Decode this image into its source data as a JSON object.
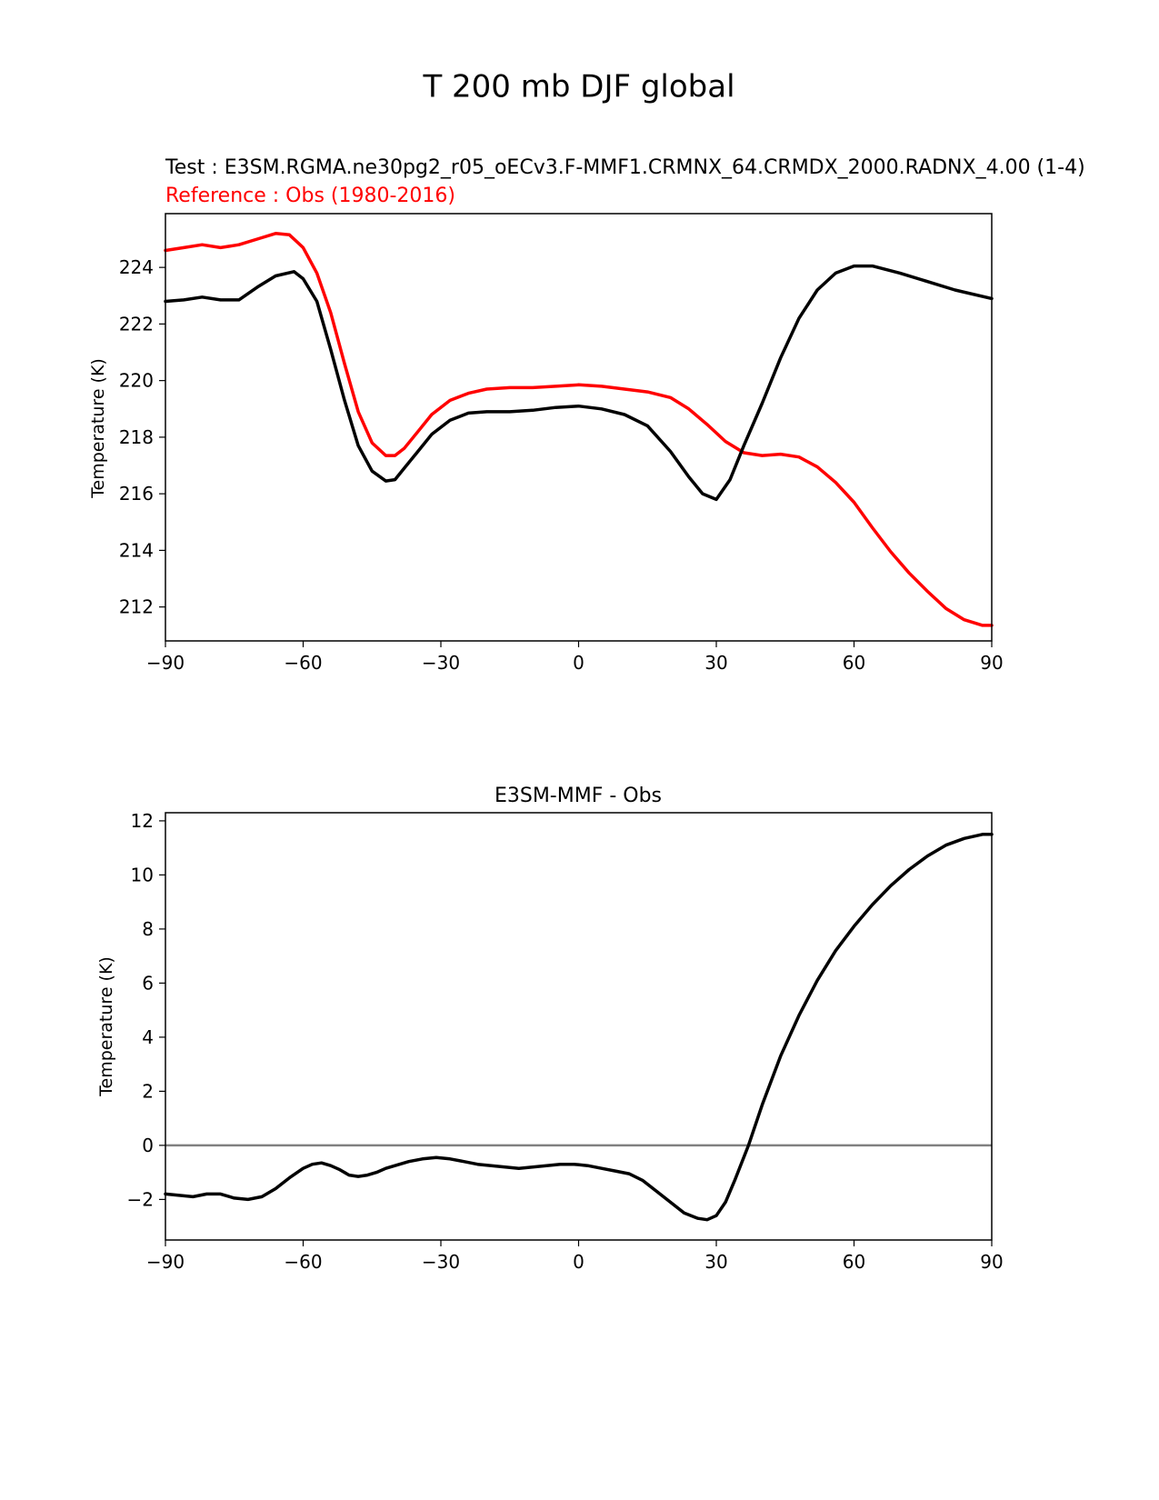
{
  "figure": {
    "title": "T 200 mb DJF global",
    "colors": {
      "test": "#000000",
      "reference": "#ff0000",
      "zero_line": "#808080",
      "axes": "#000000"
    }
  },
  "chart_data": [
    {
      "type": "line",
      "subtitle_test": "Test : E3SM.RGMA.ne30pg2_r05_oECv3.F-MMF1.CRMNX_64.CRMDX_2000.RADNX_4.00 (1-4)",
      "subtitle_reference": "Reference : Obs (1980-2016)",
      "xlabel": "",
      "ylabel": "Temperature (K)",
      "xlim": [
        -90,
        90
      ],
      "ylim": [
        210.8,
        225.9
      ],
      "xticks": [
        -90,
        -60,
        -30,
        0,
        30,
        60,
        90
      ],
      "xtick_labels": [
        "−90",
        "−60",
        "−30",
        "0",
        "30",
        "60",
        "90"
      ],
      "yticks": [
        212,
        214,
        216,
        218,
        220,
        222,
        224
      ],
      "ytick_labels": [
        "212",
        "214",
        "216",
        "218",
        "220",
        "222",
        "224"
      ],
      "series": [
        {
          "name": "Test",
          "color": "#000000",
          "x": [
            -90,
            -86,
            -82,
            -78,
            -74,
            -70,
            -66,
            -62,
            -60,
            -57,
            -54,
            -51,
            -48,
            -45,
            -42,
            -40,
            -38,
            -35,
            -32,
            -28,
            -24,
            -20,
            -15,
            -10,
            -5,
            0,
            5,
            10,
            15,
            20,
            24,
            27,
            30,
            33,
            36,
            40,
            44,
            48,
            52,
            56,
            60,
            64,
            70,
            76,
            82,
            90
          ],
          "values": [
            222.8,
            222.85,
            222.95,
            222.85,
            222.85,
            223.3,
            223.7,
            223.85,
            223.6,
            222.8,
            221.1,
            219.3,
            217.7,
            216.8,
            216.45,
            216.5,
            216.9,
            217.5,
            218.1,
            218.6,
            218.85,
            218.9,
            218.9,
            218.95,
            219.05,
            219.1,
            219.0,
            218.8,
            218.4,
            217.5,
            216.6,
            216.0,
            215.8,
            216.5,
            217.7,
            219.2,
            220.8,
            222.2,
            223.2,
            223.8,
            224.05,
            224.05,
            223.8,
            223.5,
            223.2,
            222.9
          ]
        },
        {
          "name": "Reference",
          "color": "#ff0000",
          "x": [
            -90,
            -86,
            -82,
            -78,
            -74,
            -70,
            -66,
            -63,
            -60,
            -57,
            -54,
            -51,
            -48,
            -45,
            -42,
            -40,
            -38,
            -35,
            -32,
            -28,
            -24,
            -20,
            -15,
            -10,
            -5,
            0,
            5,
            10,
            15,
            20,
            24,
            28,
            32,
            36,
            40,
            44,
            48,
            52,
            56,
            60,
            64,
            68,
            72,
            76,
            80,
            84,
            88,
            90
          ],
          "values": [
            224.6,
            224.7,
            224.8,
            224.7,
            224.8,
            225.0,
            225.2,
            225.15,
            224.7,
            223.8,
            222.4,
            220.6,
            218.9,
            217.8,
            217.35,
            217.35,
            217.6,
            218.2,
            218.8,
            219.3,
            219.55,
            219.7,
            219.75,
            219.75,
            219.8,
            219.85,
            219.8,
            219.7,
            219.6,
            219.4,
            219.0,
            218.45,
            217.85,
            217.45,
            217.35,
            217.4,
            217.3,
            216.95,
            216.4,
            215.7,
            214.8,
            213.95,
            213.2,
            212.55,
            211.95,
            211.55,
            211.35,
            211.35
          ]
        }
      ]
    },
    {
      "type": "line",
      "title": "E3SM-MMF - Obs",
      "xlabel": "",
      "ylabel": "Temperature (K)",
      "xlim": [
        -90,
        90
      ],
      "ylim": [
        -3.5,
        12.3
      ],
      "xticks": [
        -90,
        -60,
        -30,
        0,
        30,
        60,
        90
      ],
      "xtick_labels": [
        "−90",
        "−60",
        "−30",
        "0",
        "30",
        "60",
        "90"
      ],
      "yticks": [
        -2,
        0,
        2,
        4,
        6,
        8,
        10,
        12
      ],
      "ytick_labels": [
        "−2",
        "0",
        "2",
        "4",
        "6",
        "8",
        "10",
        "12"
      ],
      "reference_line": {
        "y": 0,
        "color": "#808080"
      },
      "series": [
        {
          "name": "Difference",
          "color": "#000000",
          "x": [
            -90,
            -87,
            -84,
            -81,
            -78,
            -75,
            -72,
            -69,
            -66,
            -63,
            -60,
            -58,
            -56,
            -54,
            -52,
            -50,
            -48,
            -46,
            -44,
            -42,
            -40,
            -37,
            -34,
            -31,
            -28,
            -25,
            -22,
            -19,
            -16,
            -13,
            -10,
            -7,
            -4,
            -1,
            2,
            5,
            8,
            11,
            14,
            17,
            20,
            23,
            26,
            28,
            30,
            32,
            34,
            37,
            40,
            44,
            48,
            52,
            56,
            60,
            64,
            68,
            72,
            76,
            80,
            84,
            88,
            90
          ],
          "values": [
            -1.8,
            -1.85,
            -1.9,
            -1.8,
            -1.8,
            -1.95,
            -2.0,
            -1.9,
            -1.6,
            -1.2,
            -0.85,
            -0.7,
            -0.65,
            -0.75,
            -0.9,
            -1.1,
            -1.15,
            -1.1,
            -1.0,
            -0.85,
            -0.75,
            -0.6,
            -0.5,
            -0.45,
            -0.5,
            -0.6,
            -0.7,
            -0.75,
            -0.8,
            -0.85,
            -0.8,
            -0.75,
            -0.7,
            -0.7,
            -0.75,
            -0.85,
            -0.95,
            -1.05,
            -1.3,
            -1.7,
            -2.1,
            -2.5,
            -2.7,
            -2.75,
            -2.6,
            -2.1,
            -1.3,
            0.0,
            1.5,
            3.3,
            4.8,
            6.1,
            7.2,
            8.1,
            8.9,
            9.6,
            10.2,
            10.7,
            11.1,
            11.35,
            11.5,
            11.5
          ]
        }
      ]
    }
  ]
}
